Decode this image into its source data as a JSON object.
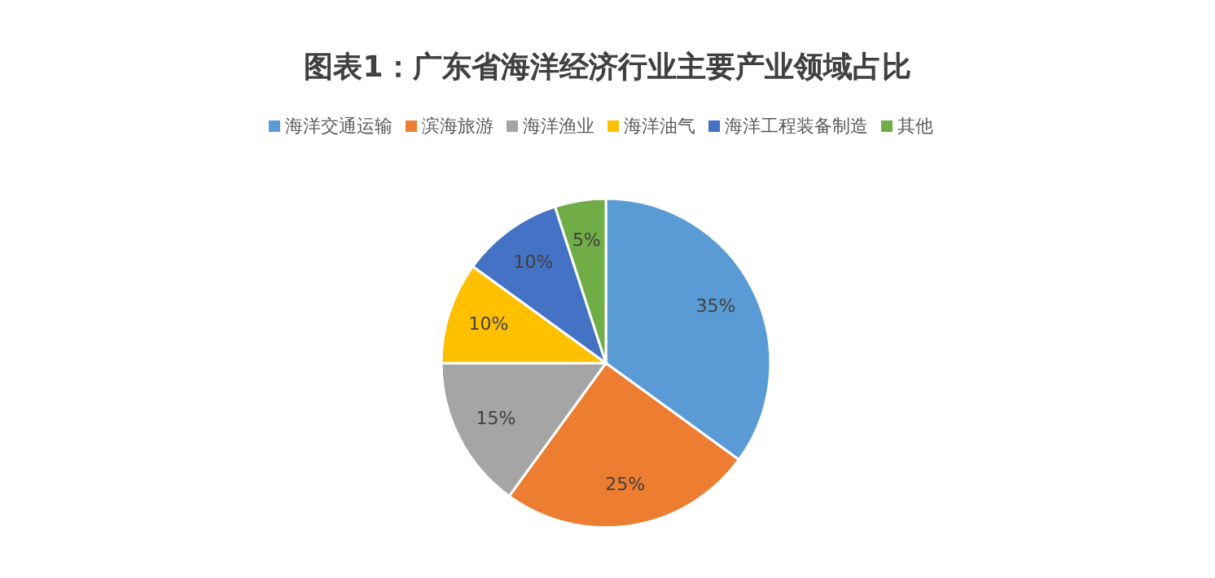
{
  "chart_data": {
    "type": "pie",
    "title": "图表1：广东省海洋经济行业主要产业领域占比",
    "categories": [
      "海洋交通运输",
      "滨海旅游",
      "海洋渔业",
      "海洋油气",
      "海洋工程装备制造",
      "其他"
    ],
    "values": [
      35,
      25,
      15,
      10,
      10,
      5
    ],
    "colors": [
      "#5b9bd5",
      "#ed7d31",
      "#a5a5a5",
      "#ffc000",
      "#4472c4",
      "#70ad47"
    ],
    "value_labels": [
      "35%",
      "25%",
      "15%",
      "10%",
      "10%",
      "5%"
    ],
    "legend": "top"
  }
}
